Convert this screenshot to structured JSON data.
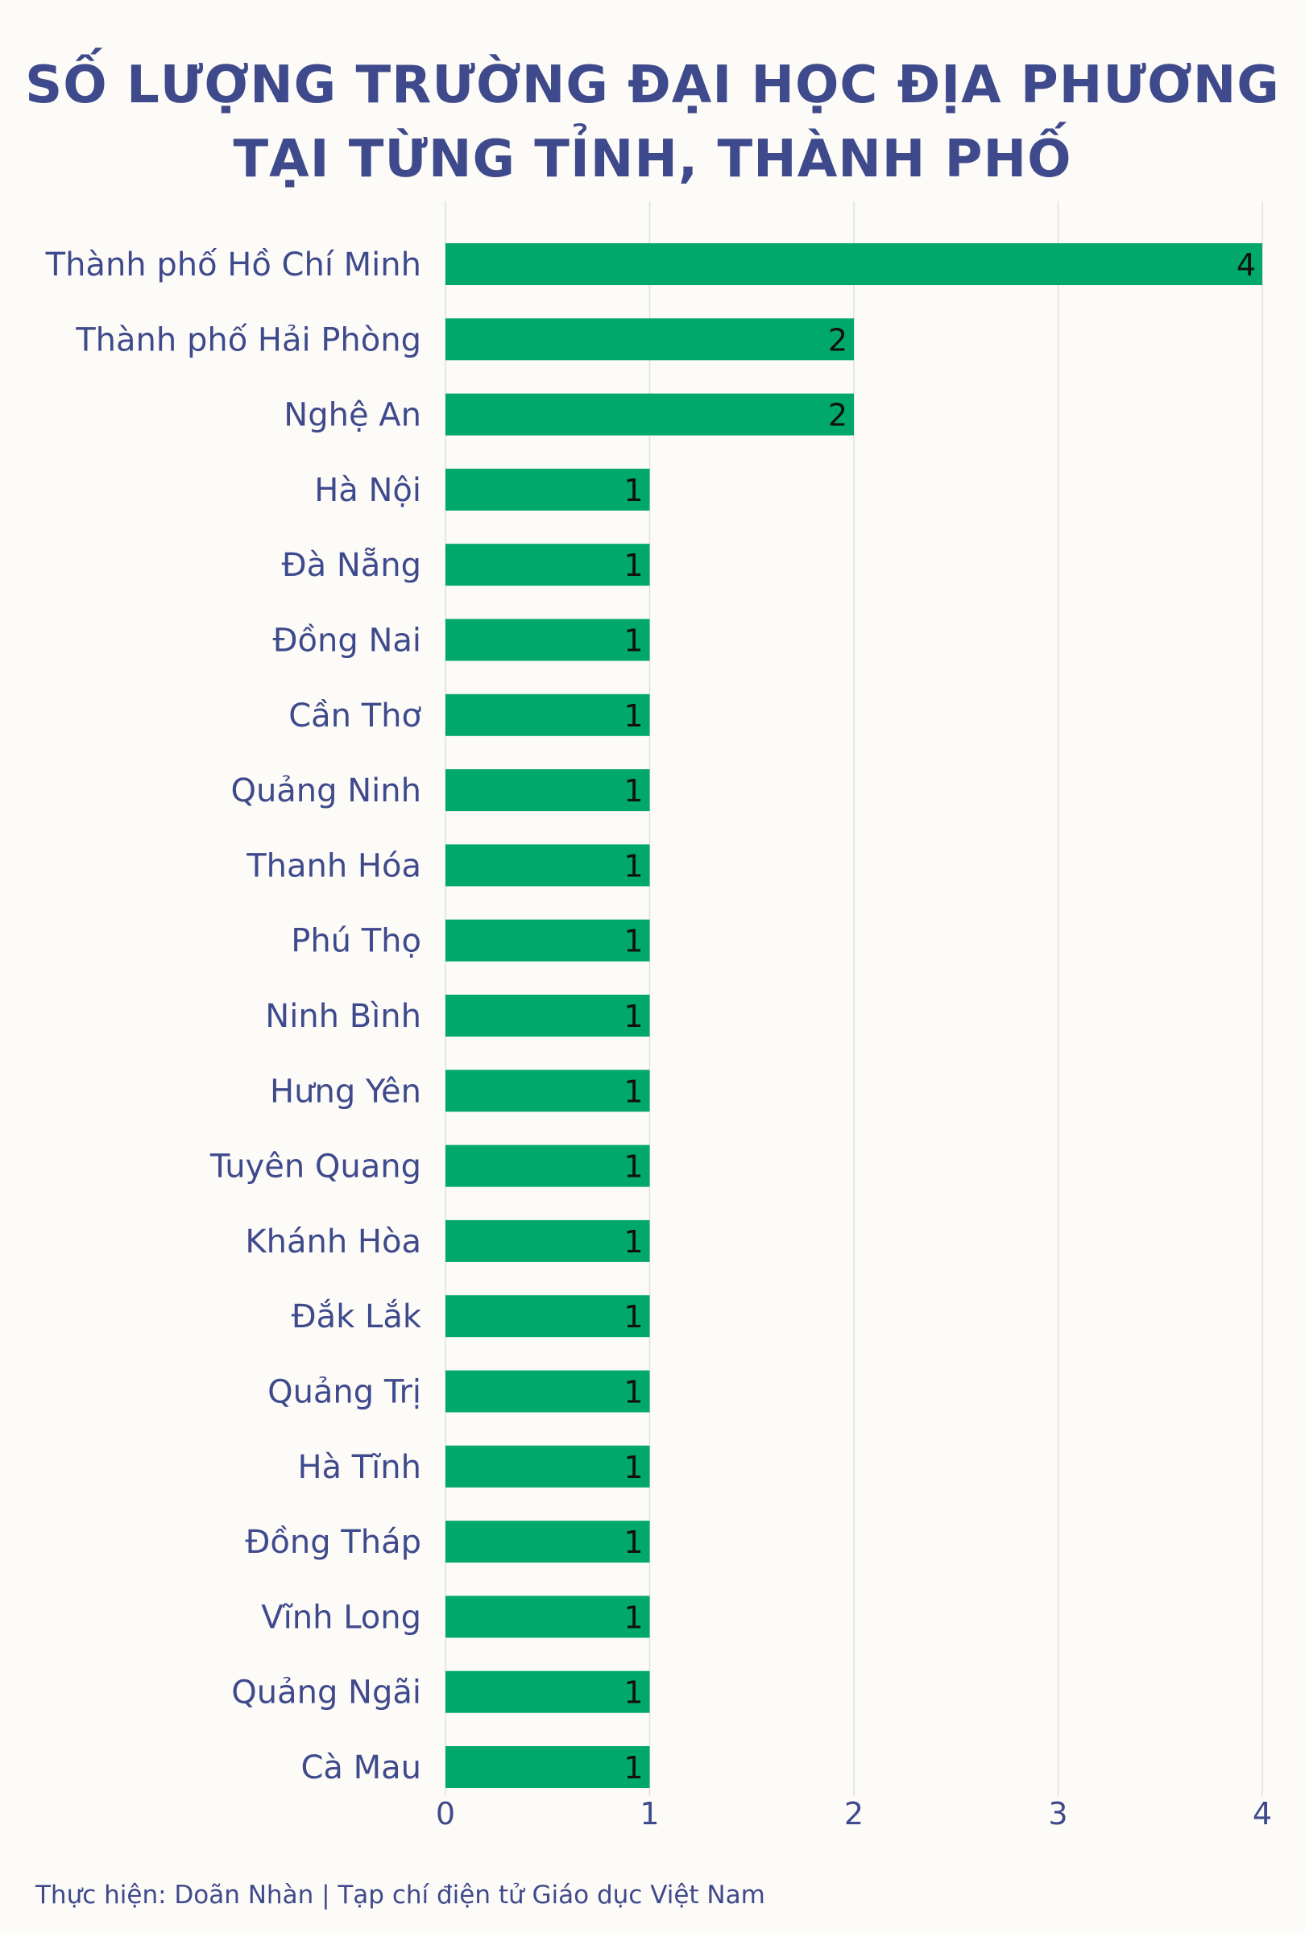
{
  "chart_data": {
    "type": "bar",
    "orientation": "horizontal",
    "title_lines": [
      "SỐ LƯỢNG TRƯỜNG ĐẠI HỌC ĐỊA PHƯƠNG",
      "TẠI TỪNG TỈNH, THÀNH PHỐ"
    ],
    "categories": [
      "Thành phố Hồ Chí Minh",
      "Thành phố Hải Phòng",
      "Nghệ An",
      "Hà Nội",
      "Đà Nẵng",
      "Đồng Nai",
      "Cần Thơ",
      "Quảng Ninh",
      "Thanh Hóa",
      "Phú Thọ",
      "Ninh Bình",
      "Hưng Yên",
      "Tuyên Quang",
      "Khánh Hòa",
      "Đắk Lắk",
      "Quảng Trị",
      "Hà Tĩnh",
      "Đồng Tháp",
      "Vĩnh Long",
      "Quảng Ngãi",
      "Cà Mau"
    ],
    "values": [
      4,
      2,
      2,
      1,
      1,
      1,
      1,
      1,
      1,
      1,
      1,
      1,
      1,
      1,
      1,
      1,
      1,
      1,
      1,
      1,
      1
    ],
    "x_ticks": [
      0,
      1,
      2,
      3,
      4
    ],
    "xlim": [
      0,
      4
    ],
    "grid": "vertical",
    "bar_color": "#00a86b"
  },
  "colors": {
    "text": "#3f4a8c",
    "bar": "#00a86b",
    "grid": "#e0e0e0",
    "background": "#fdfbf7"
  },
  "footer": "Thực hiện: Doãn Nhàn | Tạp chí điện tử Giáo dục Việt Nam"
}
